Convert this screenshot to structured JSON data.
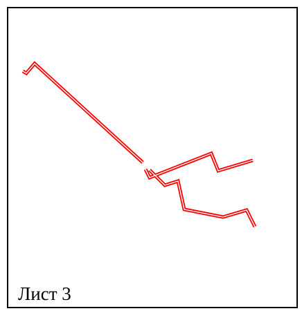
{
  "sheet": {
    "label": "Лист 3",
    "border_color": "#000000",
    "background_color": "#ffffff"
  },
  "drawing": {
    "line_color": "#ff0000",
    "inner_color": "#ffffff",
    "segments": [
      "route-upper-left-diagonal",
      "route-middle-zigzag",
      "route-lower-branch"
    ]
  }
}
